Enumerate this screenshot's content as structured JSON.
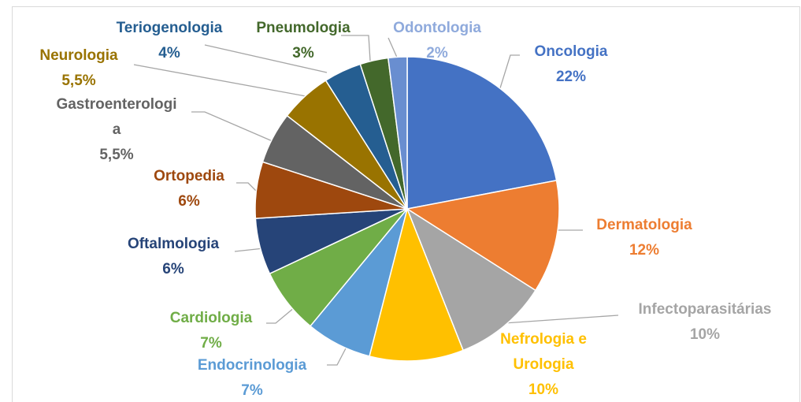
{
  "chart_data": {
    "type": "pie",
    "categories": [
      "Oncologia",
      "Dermatologia",
      "Infectoparasitárias",
      "Nefrologia e Urologia",
      "Endocrinologia",
      "Cardiologia",
      "Oftalmologia",
      "Ortopedia",
      "Gastroenterologia",
      "Neurologia",
      "Teriogenologia",
      "Pneumologia",
      "Odontologia"
    ],
    "values": [
      22,
      12,
      10,
      10,
      7,
      7,
      6,
      6,
      5.5,
      5.5,
      4,
      3,
      2
    ],
    "value_labels": [
      "22%",
      "12%",
      "10%",
      "10%",
      "7%",
      "7%",
      "6%",
      "6%",
      "5,5%",
      "5,5%",
      "4%",
      "3%",
      "2%"
    ],
    "colors": [
      "#4472c4",
      "#ed7d31",
      "#a5a5a5",
      "#ffc000",
      "#5b9bd5",
      "#70ad47",
      "#264478",
      "#9e480e",
      "#636363",
      "#997300",
      "#255e91",
      "#43682b",
      "#698ed0"
    ]
  }
}
